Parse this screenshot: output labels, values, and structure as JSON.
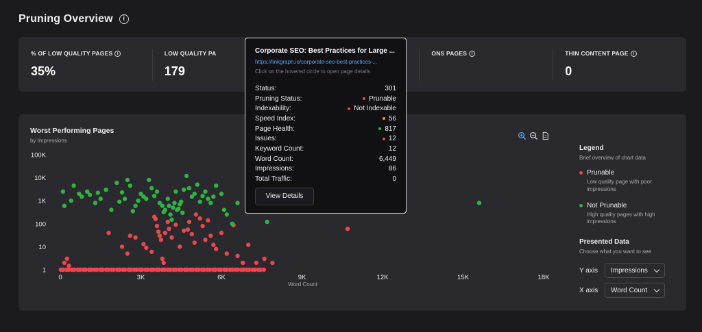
{
  "page": {
    "title": "Pruning Overview"
  },
  "stats": [
    {
      "label": "% OF LOW QUALITY PAGES",
      "value": "35%"
    },
    {
      "label": "LOW QUALITY PA",
      "value": "179"
    },
    {
      "label": "",
      "value": ""
    },
    {
      "label": "ONS PAGES",
      "value": ""
    },
    {
      "label": "THIN CONTENT PAGE",
      "value": "0"
    }
  ],
  "chart": {
    "title": "Worst Performing Pages",
    "subtitle": "by Impressions",
    "toolbar": [
      "zoom-in-icon",
      "zoom-out-icon",
      "download-icon"
    ]
  },
  "legend": {
    "title": "Legend",
    "subtitle": "Brief overview of chart data",
    "items": [
      {
        "name": "Prunable",
        "desc": "Low quality page with poor impressions",
        "color": "#e5484d"
      },
      {
        "name": "Not Prunable",
        "desc": "High quality pages with high impressions",
        "color": "#2fb344"
      }
    ]
  },
  "presented": {
    "title": "Presented Data",
    "subtitle": "Choose what you want to see",
    "y_axis_label": "Y axis",
    "y_axis_value": "Impressions",
    "x_axis_label": "X axis",
    "x_axis_value": "Word Count"
  },
  "tooltip": {
    "title": "Corporate SEO: Best Practices for Large ...",
    "url": "https://linkgraph.io/corporate-seo-best-practices-...",
    "hint": "Click on the hovered circle to open page details",
    "rows": [
      {
        "label": "Status:",
        "value": "301",
        "dot": ""
      },
      {
        "label": "Pruning Status:",
        "value": "Prunable",
        "dot": "#e5484d"
      },
      {
        "label": "Indexability:",
        "value": "Not Indexable",
        "dot": "#e5484d"
      },
      {
        "label": "Speed Index:",
        "value": "56",
        "dot": "#f59e0b"
      },
      {
        "label": "Page Health:",
        "value": "817",
        "dot": "#2fb344"
      },
      {
        "label": "Issues:",
        "value": "12",
        "dot": "#e5484d"
      },
      {
        "label": "Keyword Count:",
        "value": "12",
        "dot": ""
      },
      {
        "label": "Word Count:",
        "value": "6,449",
        "dot": ""
      },
      {
        "label": "Impressions:",
        "value": "86",
        "dot": ""
      },
      {
        "label": "Total Traffic:",
        "value": "0",
        "dot": ""
      }
    ],
    "button": "View Details"
  },
  "chart_data": {
    "type": "scatter",
    "xlabel": "Word Count",
    "ylabel": "",
    "x_ticks": [
      "0",
      "3K",
      "6K",
      "9K",
      "12K",
      "15K",
      "18K"
    ],
    "y_ticks": [
      "1",
      "10",
      "100",
      "1K",
      "10K",
      "100K"
    ],
    "xlim": [
      0,
      18000
    ],
    "ylim": [
      1,
      100000
    ],
    "y_scale": "log",
    "series": [
      {
        "name": "Prunable",
        "color": "#e5484d",
        "points": [
          [
            150,
            2
          ],
          [
            250,
            3
          ],
          [
            320,
            1.5
          ],
          [
            1800,
            40
          ],
          [
            2300,
            10
          ],
          [
            2500,
            5
          ],
          [
            2600,
            30
          ],
          [
            2800,
            25
          ],
          [
            3100,
            13
          ],
          [
            3200,
            9
          ],
          [
            3400,
            6
          ],
          [
            3500,
            200
          ],
          [
            3550,
            160
          ],
          [
            3600,
            80
          ],
          [
            3650,
            45
          ],
          [
            3700,
            30
          ],
          [
            3750,
            20
          ],
          [
            3800,
            3
          ],
          [
            3850,
            2
          ],
          [
            3900,
            40
          ],
          [
            4000,
            120
          ],
          [
            4050,
            60
          ],
          [
            4150,
            25
          ],
          [
            4300,
            90
          ],
          [
            4450,
            10
          ],
          [
            4600,
            50
          ],
          [
            4750,
            55
          ],
          [
            4800,
            120
          ],
          [
            4900,
            35
          ],
          [
            5000,
            15
          ],
          [
            5050,
            250
          ],
          [
            5200,
            170
          ],
          [
            5300,
            80
          ],
          [
            5400,
            20
          ],
          [
            5500,
            140
          ],
          [
            5600,
            30
          ],
          [
            5700,
            12
          ],
          [
            5800,
            8
          ],
          [
            6000,
            40
          ],
          [
            6200,
            5
          ],
          [
            6450,
            86
          ],
          [
            6600,
            4
          ],
          [
            6800,
            2
          ],
          [
            7000,
            12
          ],
          [
            7300,
            2
          ],
          [
            7600,
            3
          ],
          [
            7900,
            2
          ],
          [
            10700,
            60
          ]
        ]
      },
      {
        "name": "Not Prunable",
        "color": "#2fb344",
        "points": [
          [
            100,
            2500
          ],
          [
            150,
            600
          ],
          [
            400,
            1000
          ],
          [
            500,
            4500
          ],
          [
            700,
            2000
          ],
          [
            800,
            1500
          ],
          [
            1000,
            2500
          ],
          [
            1100,
            1800
          ],
          [
            1300,
            800
          ],
          [
            1400,
            2200
          ],
          [
            1500,
            1200
          ],
          [
            1700,
            3000
          ],
          [
            1900,
            400
          ],
          [
            2100,
            6000
          ],
          [
            2200,
            900
          ],
          [
            2300,
            2300
          ],
          [
            2400,
            1200
          ],
          [
            2500,
            8000
          ],
          [
            2600,
            4500
          ],
          [
            2700,
            350
          ],
          [
            2800,
            600
          ],
          [
            2900,
            1000
          ],
          [
            3000,
            2000
          ],
          [
            3100,
            1500
          ],
          [
            3200,
            1200
          ],
          [
            3300,
            8000
          ],
          [
            3400,
            3500
          ],
          [
            3500,
            1600
          ],
          [
            3600,
            2500
          ],
          [
            3700,
            800
          ],
          [
            3800,
            600
          ],
          [
            3850,
            320
          ],
          [
            3900,
            400
          ],
          [
            4000,
            1200
          ],
          [
            4050,
            600
          ],
          [
            4100,
            250
          ],
          [
            4150,
            150
          ],
          [
            4200,
            500
          ],
          [
            4250,
            800
          ],
          [
            4300,
            2500
          ],
          [
            4350,
            400
          ],
          [
            4400,
            450
          ],
          [
            4450,
            700
          ],
          [
            4500,
            900
          ],
          [
            4550,
            300
          ],
          [
            4600,
            3000
          ],
          [
            4700,
            12000
          ],
          [
            4800,
            3500
          ],
          [
            4900,
            1500
          ],
          [
            5000,
            2000
          ],
          [
            5100,
            5000
          ],
          [
            5200,
            900
          ],
          [
            5300,
            1600
          ],
          [
            5400,
            2500
          ],
          [
            5500,
            1200
          ],
          [
            5600,
            800
          ],
          [
            5700,
            1500
          ],
          [
            5800,
            4500
          ],
          [
            6000,
            2000
          ],
          [
            6100,
            400
          ],
          [
            6200,
            250
          ],
          [
            6400,
            100
          ],
          [
            6600,
            800
          ],
          [
            7700,
            120
          ],
          [
            15600,
            800
          ]
        ]
      }
    ]
  }
}
